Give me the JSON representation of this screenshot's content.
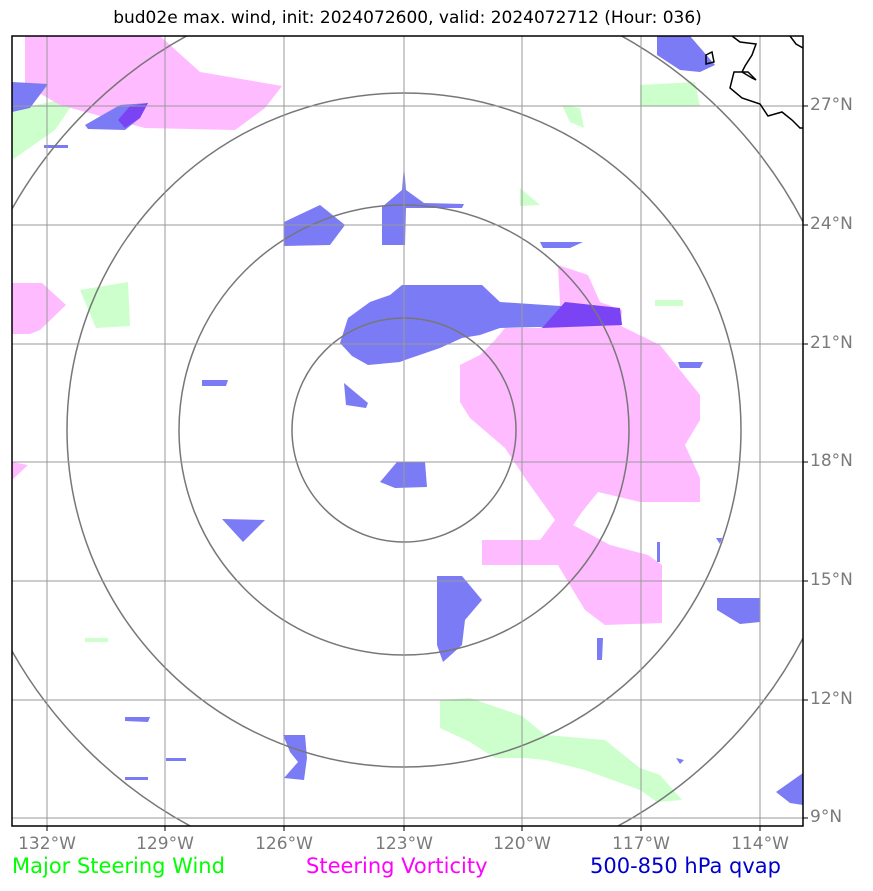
{
  "title": "bud02e max. wind, init: 2024072600, valid: 2024072712 (Hour: 036)",
  "lat_labels": [
    "27°N",
    "24°N",
    "21°N",
    "18°N",
    "15°N",
    "12°N",
    "9°N"
  ],
  "lon_labels": [
    "132°W",
    "129°W",
    "126°W",
    "123°W",
    "120°W",
    "117°W",
    "114°W"
  ],
  "legend": {
    "green": {
      "label": "Major Steering Wind",
      "color": "#00ff00"
    },
    "magenta": {
      "label": "Steering Vorticity",
      "color": "#ff00ff"
    },
    "blue": {
      "label": "500-850 hPa qvap",
      "color": "#0000cc"
    }
  },
  "colors": {
    "steering_wind_fill": "#ccffcc",
    "vorticity_fill": "#ffbbff",
    "qvap_fill": "#7b7bf5",
    "overlap_fill": "#7a44f5",
    "grid": "#999999",
    "range_rings": "#777777",
    "coastline": "#000000"
  }
}
